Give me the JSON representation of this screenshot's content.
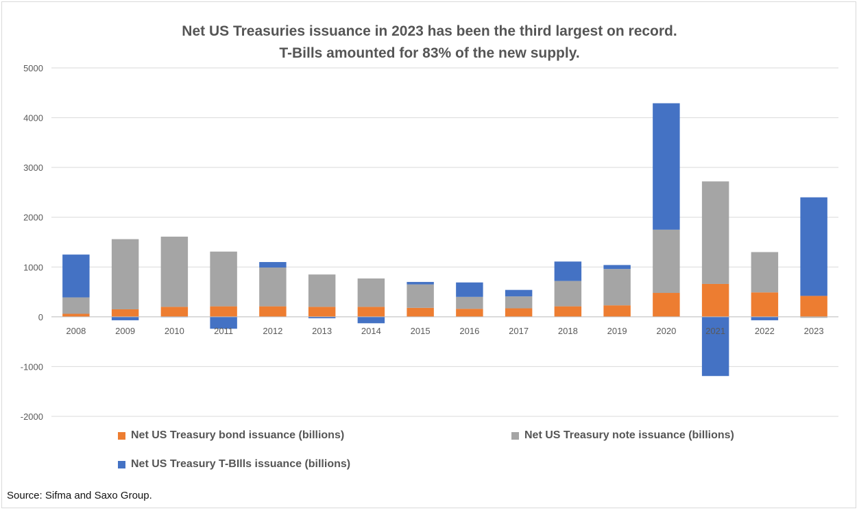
{
  "title_line1": "Net US Treasuries issuance in 2023 has been the third largest on record.",
  "title_line2": "T-Bills amounted for 83% of the new supply.",
  "source": "Source: Sifma and Saxo Group.",
  "colors": {
    "bond": "#ED7D31",
    "note": "#A5A5A5",
    "bills": "#4472C4",
    "grid": "#d9d9d9",
    "axis_text": "#595959"
  },
  "chart_data": {
    "type": "bar",
    "stacked": true,
    "categories": [
      "2008",
      "2009",
      "2010",
      "2011",
      "2012",
      "2013",
      "2014",
      "2015",
      "2016",
      "2017",
      "2018",
      "2019",
      "2020",
      "2021",
      "2022",
      "2023"
    ],
    "series": [
      {
        "name": "Net US Treasury bond issuance (billions)",
        "color": "#ED7D31",
        "values": [
          60,
          150,
          200,
          210,
          210,
          200,
          200,
          180,
          160,
          170,
          210,
          230,
          480,
          660,
          490,
          420
        ]
      },
      {
        "name": "Net US Treasury note issuance (billions)",
        "color": "#A5A5A5",
        "values": [
          330,
          1410,
          1410,
          1100,
          780,
          650,
          570,
          470,
          240,
          240,
          510,
          730,
          1270,
          2060,
          810,
          -20
        ]
      },
      {
        "name": "Net US Treasury T-BIlls issuance (billions)",
        "color": "#4472C4",
        "values": [
          860,
          -70,
          -10,
          -240,
          110,
          -30,
          -130,
          50,
          290,
          130,
          390,
          80,
          2540,
          -1190,
          -70,
          1980
        ]
      }
    ],
    "ylim": [
      -2000,
      5000
    ],
    "yticks": [
      -2000,
      -1000,
      0,
      1000,
      2000,
      3000,
      4000,
      5000
    ],
    "grid": true,
    "legend_position": "bottom"
  }
}
